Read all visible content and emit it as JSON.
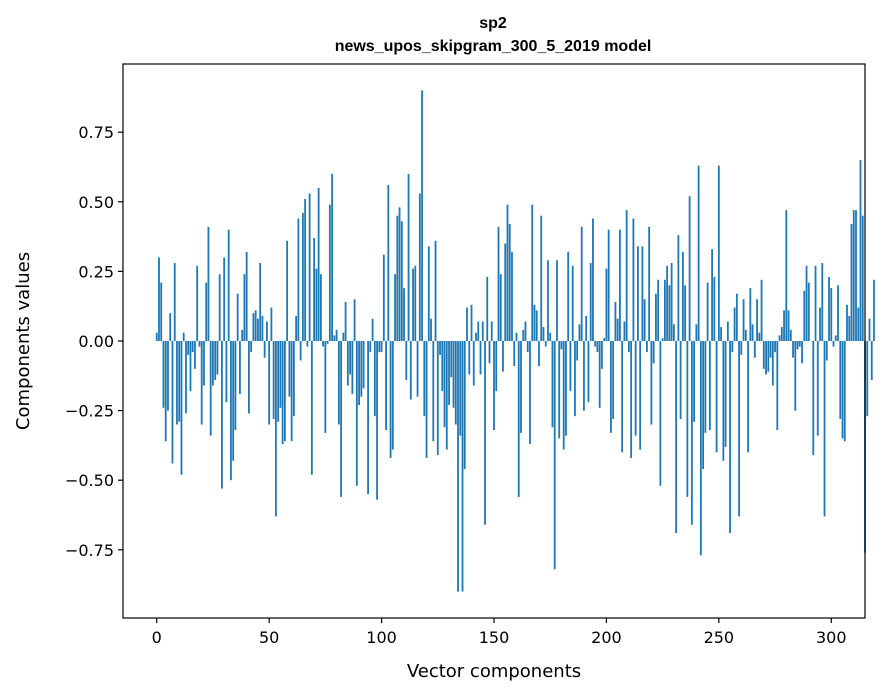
{
  "chart_data": {
    "type": "bar",
    "title_line1": "sp2",
    "title_line2": "news_upos_skipgram_300_5_2019 model",
    "xlabel": "Vector components",
    "ylabel": "Components values",
    "xlim": [
      -15,
      315
    ],
    "ylim": [
      -0.995,
      0.995
    ],
    "xticks": [
      0,
      50,
      100,
      150,
      200,
      250,
      300
    ],
    "xtick_labels": [
      "0",
      "50",
      "100",
      "150",
      "200",
      "250",
      "300"
    ],
    "yticks": [
      -0.75,
      -0.5,
      -0.25,
      0.0,
      0.25,
      0.5,
      0.75
    ],
    "ytick_labels": [
      "−0.75",
      "−0.50",
      "−0.25",
      "0.00",
      "0.25",
      "0.50",
      "0.75"
    ],
    "bar_color": "#1f77b4",
    "values": [
      0.03,
      0.3,
      0.21,
      -0.24,
      -0.36,
      -0.25,
      0.1,
      -0.44,
      0.28,
      -0.3,
      -0.29,
      -0.48,
      0.03,
      -0.26,
      -0.05,
      -0.18,
      -0.04,
      -0.1,
      0.27,
      -0.02,
      -0.3,
      -0.16,
      0.21,
      0.41,
      -0.34,
      -0.16,
      -0.14,
      -0.12,
      0.24,
      -0.53,
      0.3,
      -0.22,
      0.4,
      -0.5,
      -0.43,
      -0.32,
      0.17,
      -0.19,
      0.04,
      0.24,
      0.32,
      -0.26,
      -0.04,
      0.1,
      0.11,
      0.08,
      0.28,
      0.09,
      -0.06,
      0.07,
      -0.3,
      0.12,
      -0.28,
      -0.63,
      -0.29,
      -0.24,
      -0.37,
      -0.36,
      0.36,
      -0.2,
      -0.36,
      -0.27,
      0.09,
      0.44,
      -0.07,
      0.46,
      0.51,
      -0.02,
      0.53,
      -0.48,
      0.37,
      0.26,
      0.55,
      0.24,
      -0.02,
      -0.33,
      -0.01,
      0.49,
      0.6,
      0.02,
      0.04,
      -0.3,
      -0.56,
      0.03,
      0.14,
      -0.16,
      -0.12,
      -0.19,
      0.15,
      -0.52,
      -0.23,
      -0.2,
      -0.17,
      0.0,
      -0.55,
      -0.04,
      0.08,
      -0.27,
      -0.57,
      -0.04,
      -0.04,
      0.31,
      -0.32,
      0.56,
      -0.42,
      -0.39,
      0.24,
      0.45,
      0.48,
      0.43,
      0.19,
      -0.14,
      0.6,
      -0.21,
      0.26,
      0.27,
      -0.2,
      0.53,
      0.9,
      -0.27,
      -0.42,
      0.34,
      0.08,
      -0.36,
      0.36,
      -0.41,
      -0.05,
      -0.18,
      -0.31,
      -0.39,
      -0.23,
      -0.13,
      -0.24,
      -0.3,
      -0.9,
      -0.34,
      -0.9,
      -0.46,
      0.12,
      -0.12,
      0.13,
      -0.16,
      0.03,
      0.07,
      -0.12,
      0.07,
      -0.66,
      0.23,
      -0.08,
      0.07,
      -0.32,
      -0.18,
      0.41,
      0.24,
      -0.11,
      0.35,
      0.49,
      0.42,
      0.32,
      -0.09,
      0.03,
      -0.56,
      -0.33,
      0.04,
      0.07,
      -0.04,
      -0.37,
      0.49,
      0.13,
      0.11,
      -0.09,
      0.45,
      0.05,
      -0.02,
      0.29,
      0.03,
      -0.31,
      -0.82,
      0.29,
      -0.35,
      -0.03,
      -0.39,
      -0.34,
      0.32,
      -0.18,
      0.27,
      -0.27,
      -0.07,
      0.06,
      0.41,
      -0.25,
      0.09,
      -0.22,
      0.28,
      0.44,
      -0.02,
      -0.04,
      -0.24,
      -0.1,
      0.01,
      0.26,
      0.4,
      -0.33,
      -0.28,
      0.14,
      0.08,
      0.4,
      -0.4,
      0.07,
      0.47,
      -0.04,
      -0.42,
      0.44,
      -0.34,
      0.34,
      -0.39,
      0.34,
      0.15,
      -0.04,
      0.41,
      -0.3,
      -0.08,
      0.17,
      0.22,
      -0.52,
      0.01,
      0.22,
      0.27,
      0.2,
      0.28,
      0.06,
      -0.69,
      0.38,
      -0.28,
      0.32,
      0.2,
      -0.56,
      0.52,
      -0.66,
      -0.29,
      0.06,
      0.63,
      -0.77,
      -0.46,
      -0.33,
      0.21,
      -0.32,
      0.33,
      0.23,
      -0.4,
      0.63,
      0.05,
      -0.43,
      -0.38,
      0.07,
      -0.69,
      -0.04,
      0.12,
      0.17,
      -0.63,
      -0.05,
      0.15,
      0.04,
      -0.4,
      0.19,
      0.06,
      -0.06,
      0.15,
      0.03,
      0.22,
      -0.1,
      -0.12,
      -0.11,
      -0.06,
      -0.16,
      -0.04,
      -0.32,
      0.02,
      0.05,
      0.11,
      0.47,
      0.11,
      0.04,
      -0.06,
      -0.25,
      -0.03,
      -0.02,
      -0.08,
      0.18,
      0.27,
      0.21,
      0.0,
      -0.41,
      0.27,
      -0.34,
      0.12,
      0.28,
      -0.63,
      -0.07,
      0.23,
      0.19,
      -0.02,
      0.02,
      0.2,
      -0.28,
      -0.35,
      -0.36,
      0.13,
      0.09,
      0.42,
      0.47,
      0.47,
      0.12,
      0.65,
      0.45,
      -0.76,
      -0.27,
      0.08,
      -0.14,
      0.22
    ]
  }
}
